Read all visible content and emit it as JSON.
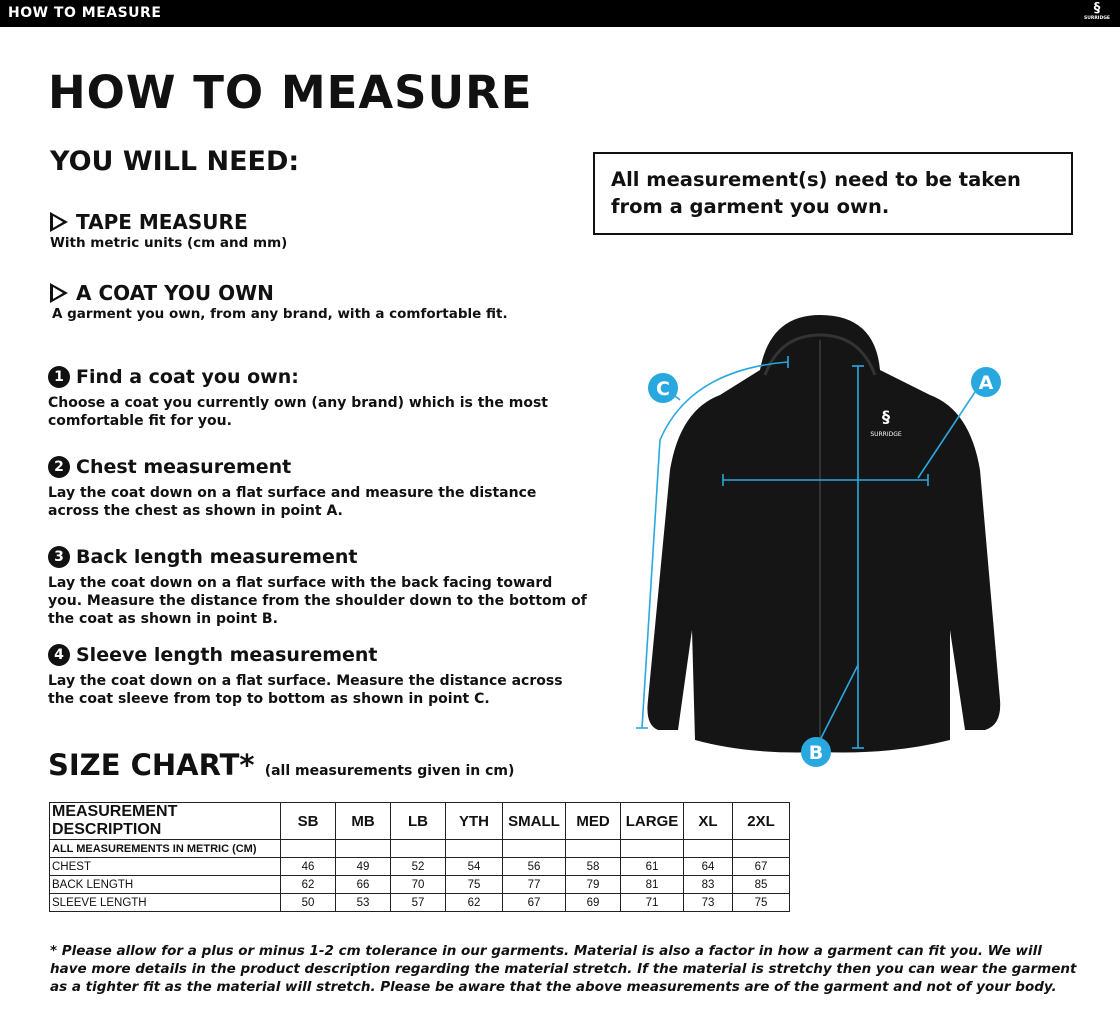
{
  "header": {
    "title": "HOW TO MEASURE",
    "logo_text": "SURRIDGE"
  },
  "page_title": "HOW TO MEASURE",
  "you_will_need": "YOU WILL NEED:",
  "needs": [
    {
      "title": "TAPE MEASURE",
      "desc": "With metric units (cm and mm)"
    },
    {
      "title": "A COAT YOU OWN",
      "desc": "A garment you own, from any brand, with a comfortable fit."
    }
  ],
  "steps": [
    {
      "num": "1",
      "title": "Find a coat you own:",
      "desc": "Choose a coat you currently own (any brand) which is the most comfortable fit for you."
    },
    {
      "num": "2",
      "title": "Chest measurement",
      "desc": "Lay the coat down on a flat surface and measure the distance across the chest as shown in point A."
    },
    {
      "num": "3",
      "title": "Back length measurement",
      "desc": "Lay the coat down on a flat surface with the back facing toward you. Measure the distance from the shoulder down to the bottom of the coat as shown in point B."
    },
    {
      "num": "4",
      "title": "Sleeve length measurement",
      "desc": "Lay the coat down on a flat surface. Measure the distance across the coat sleeve from top to bottom as shown in point C."
    }
  ],
  "note": "All measurement(s) need to be taken from a garment you own.",
  "diagram": {
    "labels": [
      "A",
      "B",
      "C"
    ],
    "accent": "#29a8e0",
    "jacket_logo": "SURRIDGE"
  },
  "size_chart": {
    "title": "SIZE CHART*",
    "subtitle": "(all measurements given in cm)",
    "headers": [
      "MEASUREMENT DESCRIPTION",
      "SB",
      "MB",
      "LB",
      "YTH",
      "SMALL",
      "MED",
      "LARGE",
      "XL",
      "2XL"
    ],
    "subheader": "ALL MEASUREMENTS IN METRIC (CM)",
    "rows": [
      {
        "label": "CHEST",
        "values": [
          "46",
          "49",
          "52",
          "54",
          "56",
          "58",
          "61",
          "64",
          "67"
        ]
      },
      {
        "label": "BACK LENGTH",
        "values": [
          "62",
          "66",
          "70",
          "75",
          "77",
          "79",
          "81",
          "83",
          "85"
        ]
      },
      {
        "label": "SLEEVE LENGTH",
        "values": [
          "50",
          "53",
          "57",
          "62",
          "67",
          "69",
          "71",
          "73",
          "75"
        ]
      }
    ]
  },
  "footnote": "* Please allow for a plus or minus 1-2 cm tolerance in our garments. Material is also a factor in how a garment can fit you. We will have more details in the product description regarding the material stretch.  If the material is stretchy then you can wear the garment as a tighter fit as the material will stretch.  Please be aware that the above measurements are of the garment and not of your body."
}
